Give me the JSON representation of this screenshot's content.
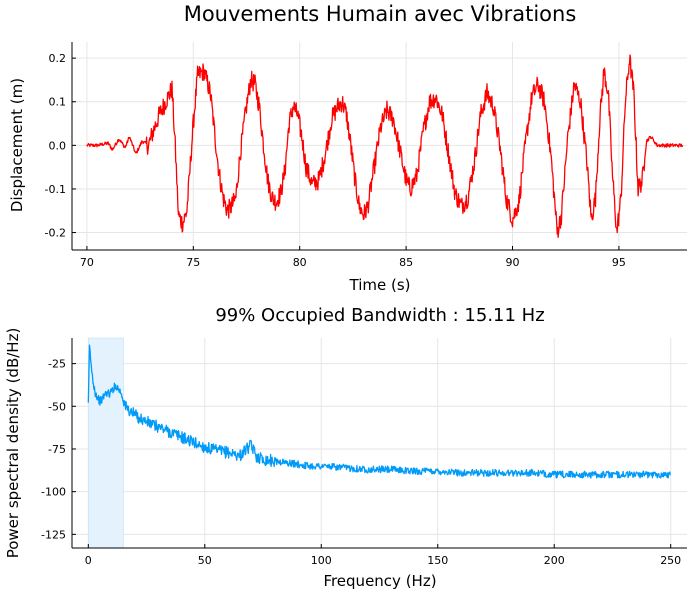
{
  "chart_data": [
    {
      "type": "line",
      "title": "Mouvements Humain avec Vibrations",
      "xlabel": "Time (s)",
      "ylabel": "Displacement (m)",
      "xlim": [
        69.3,
        98.2
      ],
      "ylim": [
        -0.24,
        0.237
      ],
      "xticks": [
        70,
        75,
        80,
        85,
        90,
        95
      ],
      "xtick_labels": [
        "70",
        "75",
        "80",
        "85",
        "90",
        "95"
      ],
      "yticks": [
        -0.2,
        -0.1,
        0.0,
        0.1,
        0.2
      ],
      "ytick_labels": [
        "-0.2",
        "-0.1",
        "0.0",
        "0.1",
        "0.2"
      ],
      "grid": true,
      "legend": "none",
      "series": [
        {
          "color": "#ff0000",
          "x": [
            70.0,
            70.5,
            71.0,
            71.2,
            71.5,
            71.8,
            72.0,
            72.3,
            72.6,
            72.9,
            73.1,
            73.4,
            73.7,
            74.0,
            74.15,
            74.3,
            74.5,
            74.7,
            75.0,
            75.2,
            75.5,
            75.8,
            76.0,
            76.2,
            76.4,
            76.6,
            76.8,
            77.0,
            77.2,
            77.5,
            77.7,
            77.9,
            78.1,
            78.3,
            78.5,
            78.7,
            78.9,
            79.1,
            79.3,
            79.5,
            79.7,
            79.9,
            80.1,
            80.3,
            80.6,
            80.9,
            81.2,
            81.5,
            81.8,
            82.0,
            82.2,
            82.4,
            82.6,
            82.8,
            83.0,
            83.2,
            83.5,
            83.8,
            84.1,
            84.4,
            84.7,
            85.0,
            85.2,
            85.5,
            85.8,
            86.1,
            86.4,
            86.7,
            87.0,
            87.3,
            87.6,
            87.9,
            88.2,
            88.5,
            88.8,
            89.1,
            89.4,
            89.7,
            90.0,
            90.3,
            90.6,
            90.9,
            91.2,
            91.5,
            91.8,
            92.0,
            92.1,
            92.3,
            92.6,
            92.9,
            93.2,
            93.5,
            93.7,
            93.9,
            94.1,
            94.3,
            94.5,
            94.7,
            94.9,
            95.1,
            95.3,
            95.5,
            95.7,
            95.9,
            96.1,
            96.3,
            96.5,
            96.8,
            97.2,
            97.6,
            98.0
          ],
          "y": [
            0.0,
            0.0,
            0.005,
            -0.01,
            0.015,
            -0.005,
            0.02,
            -0.02,
            0.01,
            0.0,
            0.03,
            0.07,
            0.1,
            0.13,
            0.0,
            -0.16,
            -0.18,
            -0.15,
            0.05,
            0.16,
            0.17,
            0.12,
            0.03,
            -0.06,
            -0.12,
            -0.15,
            -0.14,
            -0.12,
            -0.02,
            0.09,
            0.15,
            0.14,
            0.09,
            0.0,
            -0.08,
            -0.12,
            -0.13,
            -0.11,
            -0.06,
            0.05,
            0.09,
            0.07,
            0.02,
            -0.05,
            -0.09,
            -0.08,
            -0.02,
            0.06,
            0.09,
            0.1,
            0.07,
            0.0,
            -0.08,
            -0.14,
            -0.16,
            -0.14,
            -0.05,
            0.04,
            0.08,
            0.06,
            -0.01,
            -0.08,
            -0.1,
            -0.07,
            0.03,
            0.1,
            0.11,
            0.07,
            -0.02,
            -0.11,
            -0.14,
            -0.12,
            -0.04,
            0.07,
            0.12,
            0.09,
            0.0,
            -0.12,
            -0.17,
            -0.13,
            0.0,
            0.11,
            0.14,
            0.1,
            -0.02,
            -0.14,
            -0.2,
            -0.16,
            0.02,
            0.14,
            0.1,
            -0.04,
            -0.17,
            -0.12,
            0.06,
            0.17,
            0.12,
            -0.07,
            -0.2,
            -0.12,
            0.1,
            0.2,
            0.12,
            -0.1,
            -0.08,
            0.01,
            0.02,
            0.0,
            0.0,
            0.0,
            0.0
          ]
        }
      ]
    },
    {
      "type": "line",
      "title": "99% Occupied Bandwidth : 15.11 Hz",
      "xlabel": "Frequency (Hz)",
      "ylabel": "Power spectral density (dB/Hz)",
      "xlim": [
        -7,
        257
      ],
      "ylim": [
        -133,
        -10
      ],
      "xticks": [
        0,
        50,
        100,
        150,
        200,
        250
      ],
      "xtick_labels": [
        "0",
        "50",
        "100",
        "150",
        "200",
        "250"
      ],
      "yticks": [
        -125,
        -100,
        -75,
        -50,
        -25
      ],
      "ytick_labels": [
        "-125",
        "-100",
        "-75",
        "-50",
        "-25"
      ],
      "grid": true,
      "legend": "none",
      "shaded_band": {
        "x": [
          0,
          15.11
        ],
        "color": "#e3f2fc"
      },
      "series": [
        {
          "color": "#009af9",
          "x": [
            0,
            0.5,
            1,
            1.5,
            2,
            3,
            4,
            5,
            6,
            7,
            8,
            9,
            10,
            11,
            12,
            13,
            14,
            15,
            16,
            17,
            18,
            20,
            22,
            25,
            28,
            30,
            35,
            40,
            45,
            50,
            55,
            60,
            65,
            68,
            70,
            72,
            75,
            80,
            85,
            90,
            95,
            100,
            110,
            120,
            130,
            140,
            150,
            160,
            170,
            180,
            190,
            200,
            210,
            220,
            230,
            240,
            250
          ],
          "y": [
            -50,
            -15,
            -22,
            -30,
            -35,
            -42,
            -45,
            -47,
            -46,
            -43,
            -42,
            -43,
            -41,
            -39,
            -38,
            -40,
            -42,
            -46,
            -50,
            -52,
            -53,
            -55,
            -57,
            -59,
            -61,
            -62,
            -65,
            -68,
            -71,
            -74,
            -76,
            -77,
            -79,
            -75,
            -73,
            -79,
            -81,
            -82,
            -83,
            -84,
            -85,
            -85,
            -86,
            -87,
            -87,
            -88,
            -88,
            -89,
            -89,
            -89,
            -89,
            -90,
            -90,
            -90,
            -90,
            -90,
            -90
          ]
        }
      ]
    }
  ]
}
